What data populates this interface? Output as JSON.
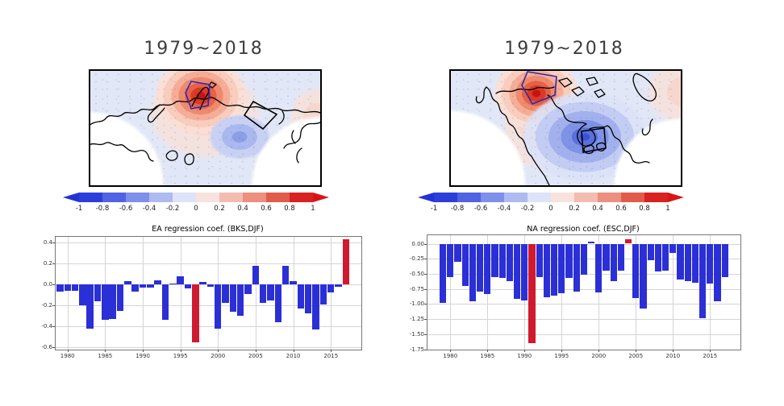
{
  "figure_titles": {
    "left_map": "1979~2018",
    "right_map": "1979~2018"
  },
  "colorbar": {
    "tick_labels": [
      "-1",
      "-0.8",
      "-0.6",
      "-0.4",
      "-0.2",
      "0",
      "0.2",
      "0.4",
      "0.6",
      "0.8",
      "1"
    ],
    "segment_colors": [
      "#2c3eda",
      "#4f63e3",
      "#7e90ea",
      "#aebbf1",
      "#dde3f8",
      "#f8e2dd",
      "#f3bcb1",
      "#ec8f7f",
      "#e25b4a",
      "#d92222"
    ],
    "left_arrow_color": "#2233d6",
    "right_arrow_color": "#d91414"
  },
  "chart_data": [
    {
      "type": "bar",
      "title": "EA regression coef. (BKS,DJF)",
      "categories": [
        1979,
        1980,
        1981,
        1982,
        1983,
        1984,
        1985,
        1986,
        1987,
        1988,
        1989,
        1990,
        1991,
        1992,
        1993,
        1994,
        1995,
        1996,
        1997,
        1998,
        1999,
        2000,
        2001,
        2002,
        2003,
        2004,
        2005,
        2006,
        2007,
        2008,
        2009,
        2010,
        2011,
        2012,
        2013,
        2014,
        2015,
        2016,
        2017
      ],
      "values": [
        -0.07,
        -0.06,
        -0.06,
        -0.2,
        -0.42,
        -0.16,
        -0.34,
        -0.33,
        -0.25,
        0.03,
        -0.07,
        -0.03,
        -0.03,
        0.04,
        -0.34,
        0.01,
        0.08,
        -0.04,
        -0.55,
        0.02,
        -0.02,
        -0.42,
        -0.18,
        -0.26,
        -0.3,
        -0.09,
        0.18,
        -0.18,
        -0.15,
        -0.36,
        0.18,
        0.03,
        -0.23,
        -0.28,
        -0.43,
        -0.19,
        -0.08,
        -0.02,
        0.43
      ],
      "red_years": [
        1997,
        2017
      ],
      "bar_color": "#2b2fd6",
      "highlight_color": "#d01a30",
      "ytick_labels": [
        "0.4",
        "0.2",
        "0.0",
        "-0.2",
        "-0.4",
        "-0.6"
      ],
      "ytick_values": [
        0.4,
        0.2,
        0.0,
        -0.2,
        -0.4,
        -0.6
      ],
      "xtick_labels": [
        "1980",
        "1985",
        "1990",
        "1995",
        "2000",
        "2005",
        "2010",
        "2015"
      ],
      "xtick_values": [
        1980,
        1985,
        1990,
        1995,
        2000,
        2005,
        2010,
        2015
      ],
      "ylim": [
        -0.62,
        0.45
      ],
      "xlim": [
        1978.4,
        2019.1
      ],
      "grid": true,
      "ylabel": "",
      "xlabel": ""
    },
    {
      "type": "bar",
      "title": "NA regression coef. (ESC,DJF)",
      "categories": [
        1979,
        1980,
        1981,
        1982,
        1983,
        1984,
        1985,
        1986,
        1987,
        1988,
        1989,
        1990,
        1991,
        1992,
        1993,
        1994,
        1995,
        1996,
        1997,
        1998,
        1999,
        2000,
        2001,
        2002,
        2003,
        2004,
        2005,
        2006,
        2007,
        2008,
        2009,
        2010,
        2011,
        2012,
        2013,
        2014,
        2015,
        2016,
        2017
      ],
      "values": [
        -0.98,
        -0.55,
        -0.3,
        -0.7,
        -0.95,
        -0.8,
        -0.83,
        -0.55,
        -0.57,
        -0.62,
        -0.92,
        -0.94,
        -1.65,
        -0.56,
        -0.89,
        -0.86,
        -0.82,
        -0.57,
        -0.8,
        -0.51,
        0.03,
        -0.81,
        -0.45,
        -0.62,
        -0.45,
        0.07,
        -0.9,
        -1.08,
        -0.28,
        -0.46,
        -0.45,
        -0.16,
        -0.59,
        -0.62,
        -0.65,
        -1.23,
        -0.66,
        -0.95,
        -0.55
      ],
      "red_years": [
        1991,
        2004
      ],
      "bar_color": "#2b2fd6",
      "highlight_color": "#d01a30",
      "ytick_labels": [
        "0.00",
        "-0.25",
        "-0.50",
        "-0.75",
        "-1.00",
        "-1.25",
        "-1.50",
        "-1.75"
      ],
      "ytick_values": [
        0.0,
        -0.25,
        -0.5,
        -0.75,
        -1.0,
        -1.25,
        -1.5,
        -1.75
      ],
      "xtick_labels": [
        "1980",
        "1985",
        "1990",
        "1995",
        "2000",
        "2005",
        "2010",
        "2015"
      ],
      "xtick_values": [
        1980,
        1985,
        1990,
        1995,
        2000,
        2005,
        2010,
        2015
      ],
      "ylim": [
        -1.75,
        0.14
      ],
      "xlim": [
        1977.0,
        2019.1
      ],
      "grid": true,
      "ylabel": "",
      "xlabel": ""
    }
  ]
}
